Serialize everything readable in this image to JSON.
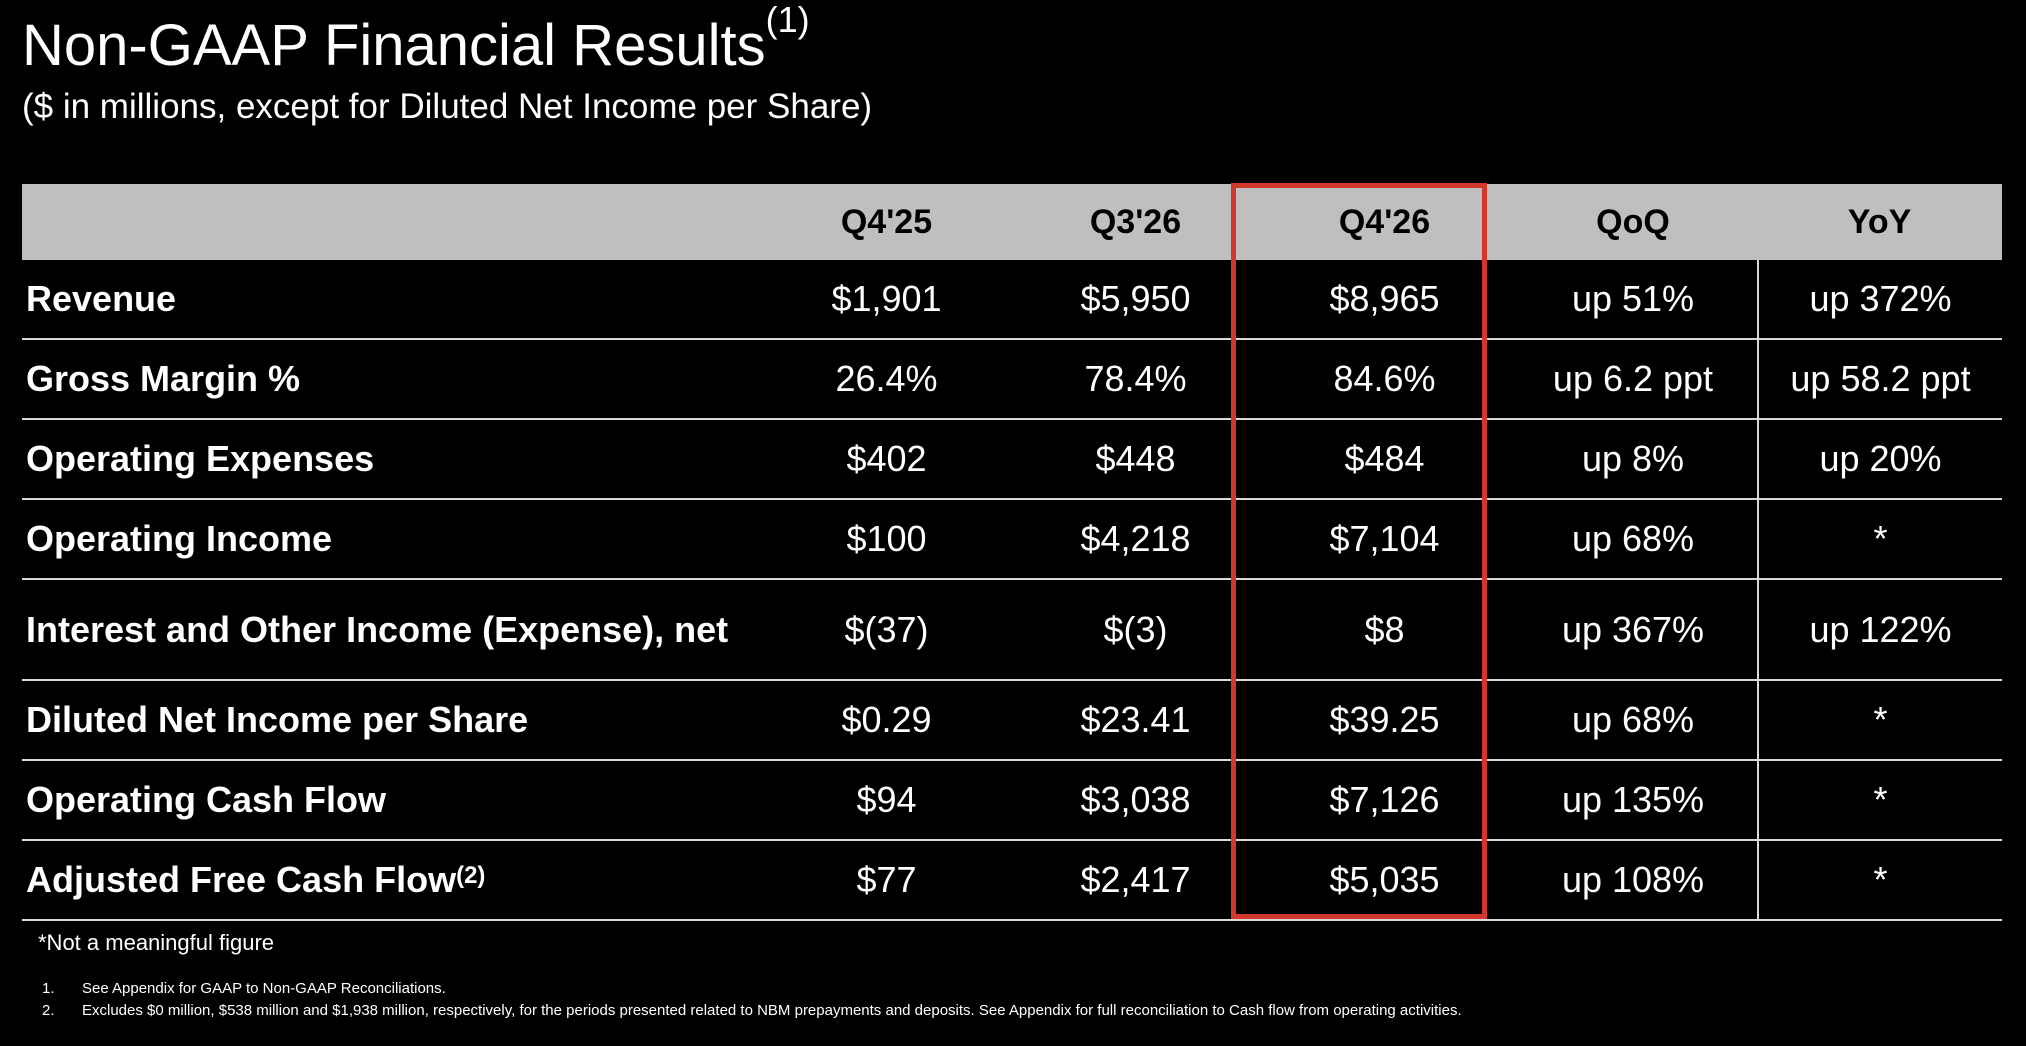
{
  "title": {
    "text": "Non-GAAP Financial Results",
    "superscript": "(1)"
  },
  "subtitle": "($ in millions, except for Diluted Net Income per Share)",
  "table": {
    "headers": [
      "",
      "Q4'25",
      "Q3'26",
      "Q4'26",
      "QoQ",
      "YoY"
    ],
    "rows": [
      {
        "label": "Revenue",
        "sup": "",
        "q425": "$1,901",
        "q326": "$5,950",
        "q426": "$8,965",
        "qoq": "up 51%",
        "yoy": "up 372%"
      },
      {
        "label": "Gross Margin %",
        "sup": "",
        "q425": "26.4%",
        "q326": "78.4%",
        "q426": "84.6%",
        "qoq": "up 6.2 ppt",
        "yoy": "up 58.2 ppt"
      },
      {
        "label": "Operating Expenses",
        "sup": "",
        "q425": "$402",
        "q326": "$448",
        "q426": "$484",
        "qoq": "up 8%",
        "yoy": "up 20%"
      },
      {
        "label": "Operating Income",
        "sup": "",
        "q425": "$100",
        "q326": "$4,218",
        "q426": "$7,104",
        "qoq": "up 68%",
        "yoy": "*"
      },
      {
        "label": "Interest and Other Income (Expense), net",
        "sup": "",
        "q425": "$(37)",
        "q326": "$(3)",
        "q426": "$8",
        "qoq": "up 367%",
        "yoy": "up 122%"
      },
      {
        "label": "Diluted Net Income per Share",
        "sup": "",
        "q425": "$0.29",
        "q326": "$23.41",
        "q426": "$39.25",
        "qoq": "up 68%",
        "yoy": "*"
      },
      {
        "label": "Operating Cash Flow",
        "sup": "",
        "q425": "$94",
        "q326": "$3,038",
        "q426": "$7,126",
        "qoq": "up 135%",
        "yoy": "*"
      },
      {
        "label": "Adjusted Free Cash Flow",
        "sup": "(2)",
        "q425": "$77",
        "q326": "$2,417",
        "q426": "$5,035",
        "qoq": "up 108%",
        "yoy": "*"
      }
    ]
  },
  "note": "*Not a meaningful figure",
  "footnotes": [
    {
      "num": "1.",
      "text": "See Appendix for GAAP to Non-GAAP Reconciliations."
    },
    {
      "num": "2.",
      "text": "Excludes $0 million, $538 million and $1,938 million, respectively, for the periods presented related to NBM prepayments and deposits. See Appendix for full reconciliation to Cash flow from operating activities."
    }
  ],
  "colors": {
    "background": "#000000",
    "header_fill": "#bfbfbf",
    "highlight_border": "#d0382b",
    "text": "#ffffff"
  }
}
